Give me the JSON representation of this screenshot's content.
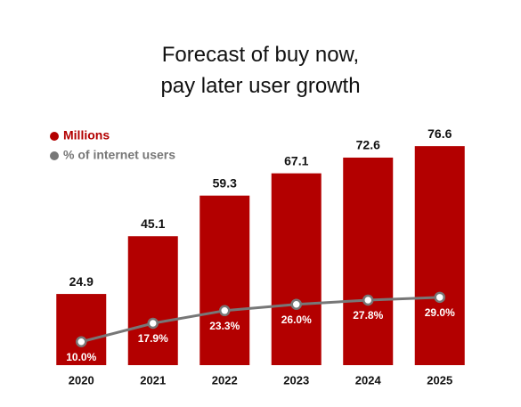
{
  "chart_data": {
    "type": "bar",
    "title": "Forecast of buy now, pay later user growth",
    "categories": [
      "2020",
      "2021",
      "2022",
      "2023",
      "2024",
      "2025"
    ],
    "series": [
      {
        "name": "Millions",
        "color": "#b30000",
        "values": [
          24.9,
          45.1,
          59.3,
          67.1,
          72.6,
          76.6
        ]
      },
      {
        "name": "% of internet users",
        "color": "#777777",
        "axis": "y2",
        "type": "line",
        "values": [
          10.0,
          17.9,
          23.3,
          26.0,
          27.8,
          29.0
        ],
        "value_labels": [
          "10.0%",
          "17.9%",
          "23.3%",
          "26.0%",
          "27.8%",
          "29.0%"
        ]
      }
    ],
    "ylim": [
      0,
      81
    ],
    "y2lim": [
      0,
      99
    ]
  }
}
